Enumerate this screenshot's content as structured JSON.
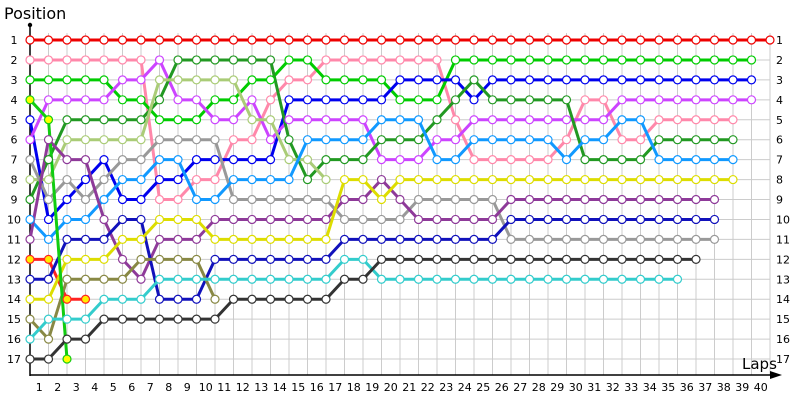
{
  "chart_data": {
    "type": "line",
    "title": "",
    "ylabel": "Position",
    "xlabel": "Laps",
    "xticks": [
      1,
      2,
      3,
      4,
      5,
      6,
      7,
      8,
      9,
      10,
      11,
      12,
      13,
      14,
      15,
      16,
      17,
      18,
      19,
      20,
      21,
      22,
      23,
      24,
      25,
      26,
      27,
      28,
      29,
      30,
      31,
      32,
      33,
      34,
      35,
      36,
      37,
      38,
      39,
      40
    ],
    "yticks": [
      1,
      2,
      3,
      4,
      5,
      6,
      7,
      8,
      9,
      10,
      11,
      12,
      13,
      14,
      15,
      16,
      17
    ],
    "xlim": [
      0,
      40
    ],
    "ylim": [
      1,
      17
    ],
    "y_inverted": true,
    "grid": true,
    "series": [
      {
        "color": "#ee0000",
        "marker_fill": "#ffffff",
        "positions": [
          1,
          1,
          1,
          1,
          1,
          1,
          1,
          1,
          1,
          1,
          1,
          1,
          1,
          1,
          1,
          1,
          1,
          1,
          1,
          1,
          1,
          1,
          1,
          1,
          1,
          1,
          1,
          1,
          1,
          1,
          1,
          1,
          1,
          1,
          1,
          1,
          1,
          1,
          1,
          1,
          1
        ]
      },
      {
        "color": "#ff88aa",
        "marker_fill": "#ffffff",
        "positions": [
          2,
          2,
          2,
          2,
          2,
          2,
          2,
          9,
          9,
          8,
          8,
          6,
          6,
          4,
          3,
          3,
          2,
          2,
          2,
          2,
          2,
          2,
          2,
          5,
          7,
          7,
          7,
          7,
          7,
          6,
          4,
          4,
          6,
          6,
          5,
          5,
          5,
          5,
          5
        ]
      },
      {
        "color": "#00cc00",
        "marker_fill": "#ffffff",
        "positions": [
          3,
          3,
          3,
          3,
          3,
          4,
          4,
          5,
          5,
          5,
          4,
          4,
          3,
          3,
          2,
          2,
          3,
          3,
          3,
          3,
          4,
          4,
          4,
          2,
          2,
          2,
          2,
          2,
          2,
          2,
          2,
          2,
          2,
          2,
          2,
          2,
          2,
          2,
          2,
          2
        ]
      },
      {
        "color": "#0000ee",
        "marker_fill": "#ffffff",
        "positions": [
          5,
          10,
          9,
          8,
          7,
          9,
          9,
          8,
          8,
          7,
          7,
          7,
          7,
          7,
          4,
          4,
          4,
          4,
          4,
          4,
          3,
          3,
          3,
          3,
          4,
          3,
          3,
          3,
          3,
          3,
          3,
          3,
          3,
          3,
          3,
          3,
          3,
          3,
          3,
          3
        ]
      },
      {
        "color": "#cc44ff",
        "marker_fill": "#ffffff",
        "positions": [
          6,
          4,
          4,
          4,
          4,
          3,
          3,
          2,
          4,
          4,
          5,
          5,
          4,
          6,
          5,
          5,
          5,
          5,
          5,
          7,
          7,
          7,
          6,
          6,
          5,
          5,
          5,
          5,
          5,
          5,
          5,
          5,
          4,
          4,
          4,
          4,
          4,
          4,
          4,
          4
        ]
      },
      {
        "color": "#229922",
        "marker_fill": "#ffffff",
        "positions": [
          9,
          7,
          5,
          5,
          5,
          5,
          5,
          4,
          2,
          2,
          2,
          2,
          2,
          2,
          6,
          8,
          7,
          7,
          7,
          6,
          6,
          6,
          5,
          4,
          3,
          4,
          4,
          4,
          4,
          4,
          7,
          7,
          7,
          7,
          6,
          6,
          6,
          6,
          6
        ]
      },
      {
        "color": "#aacc77",
        "marker_fill": "#ffffff",
        "positions": [
          8,
          8,
          6,
          6,
          6,
          6,
          6,
          3,
          3,
          3,
          3,
          3,
          5,
          5,
          7,
          7,
          8
        ]
      },
      {
        "color": "#999999",
        "marker_fill": "#ffffff",
        "positions": [
          7,
          9,
          8,
          9,
          8,
          7,
          7,
          6,
          6,
          6,
          6,
          9,
          9,
          9,
          9,
          9,
          9,
          10,
          10,
          10,
          10,
          9,
          9,
          9,
          9,
          9,
          11,
          11,
          11,
          11,
          11,
          11,
          11,
          11,
          11,
          11,
          11,
          11
        ]
      },
      {
        "color": "#1199ff",
        "marker_fill": "#ffffff",
        "positions": [
          10,
          11,
          10,
          10,
          9,
          8,
          8,
          7,
          7,
          9,
          9,
          8,
          8,
          8,
          8,
          6,
          6,
          6,
          6,
          5,
          5,
          5,
          7,
          7,
          6,
          6,
          6,
          6,
          6,
          7,
          6,
          6,
          5,
          5,
          7,
          7,
          7,
          7,
          7
        ]
      },
      {
        "color": "#8e3a99",
        "marker_fill": "#ffffff",
        "positions": [
          11,
          6,
          7,
          7,
          10,
          12,
          13,
          11,
          11,
          11,
          10,
          10,
          10,
          10,
          10,
          10,
          10,
          9,
          9,
          8,
          9,
          10,
          10,
          10,
          10,
          10,
          9,
          9,
          9,
          9,
          9,
          9,
          9,
          9,
          9,
          9,
          9,
          9
        ]
      },
      {
        "color": "#ff2222",
        "marker_fill": "#ffee00",
        "positions": [
          12,
          12,
          14,
          14
        ]
      },
      {
        "color": "#1111bb",
        "marker_fill": "#ffffff",
        "positions": [
          13,
          13,
          11,
          11,
          11,
          10,
          10,
          14,
          14,
          14,
          12,
          12,
          12,
          12,
          12,
          12,
          12,
          11,
          11,
          11,
          11,
          11,
          11,
          11,
          11,
          11,
          10,
          10,
          10,
          10,
          10,
          10,
          10,
          10,
          10,
          10,
          10,
          10
        ]
      },
      {
        "color": "#dddd00",
        "marker_fill": "#ffffff",
        "positions": [
          14,
          14,
          12,
          12,
          12,
          11,
          11,
          10,
          10,
          10,
          11,
          11,
          11,
          11,
          11,
          11,
          11,
          8,
          8,
          9,
          8,
          8,
          8,
          8,
          8,
          8,
          8,
          8,
          8,
          8,
          8,
          8,
          8,
          8,
          8,
          8,
          8,
          8,
          8
        ]
      },
      {
        "color": "#888844",
        "marker_fill": "#ffffff",
        "positions": [
          15,
          16,
          13,
          13,
          13,
          13,
          12,
          12,
          12,
          12,
          14
        ]
      },
      {
        "color": "#33cccc",
        "marker_fill": "#ffffff",
        "positions": [
          16,
          15,
          15,
          15,
          14,
          14,
          14,
          13,
          13,
          13,
          13,
          13,
          13,
          13,
          13,
          13,
          13,
          12,
          12,
          13,
          13,
          13,
          13,
          13,
          13,
          13,
          13,
          13,
          13,
          13,
          13,
          13,
          13,
          13,
          13,
          13
        ]
      },
      {
        "color": "#333333",
        "marker_fill": "#ffffff",
        "positions": [
          17,
          17,
          16,
          16,
          15,
          15,
          15,
          15,
          15,
          15,
          15,
          14,
          14,
          14,
          14,
          14,
          14,
          13,
          13,
          12,
          12,
          12,
          12,
          12,
          12,
          12,
          12,
          12,
          12,
          12,
          12,
          12,
          12,
          12,
          12,
          12,
          12
        ]
      },
      {
        "color": "#11cc11",
        "marker_fill": "#ffff00",
        "positions": [
          4,
          5,
          17
        ]
      }
    ]
  }
}
